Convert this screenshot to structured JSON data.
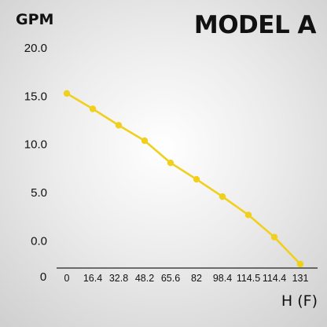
{
  "chart_data": {
    "type": "line",
    "title": "MODEL A",
    "ylabel": "GPM",
    "xlabel": "H (F)",
    "categories": [
      "0",
      "16.4",
      "32.8",
      "48.2",
      "65.6",
      "82",
      "98.4",
      "114.5",
      "114.4",
      "131"
    ],
    "series": [
      {
        "values": [
          15.2,
          13.6,
          11.9,
          10.3,
          8.0,
          6.3,
          4.5,
          2.6,
          0.3,
          -2.5
        ]
      }
    ],
    "yticks": [
      "20.0",
      "15.0",
      "10.0",
      "5.0",
      "0.0"
    ],
    "ytick_values": [
      20,
      15,
      10,
      5,
      0
    ],
    "y_origin_label": "0",
    "ylim": [
      -2.5,
      20
    ],
    "grid": false,
    "line_color": "#f0d01c"
  }
}
